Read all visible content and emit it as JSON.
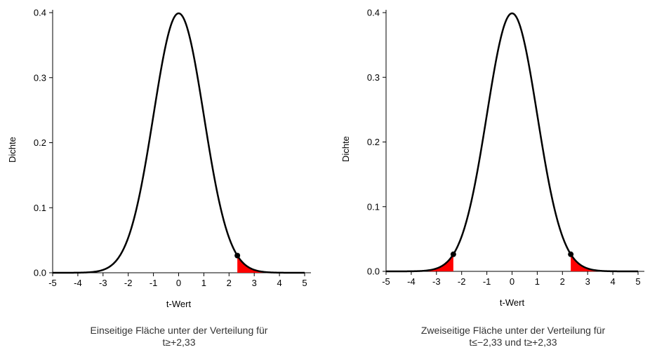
{
  "chart_data": [
    {
      "type": "line",
      "distribution": "standard normal density",
      "xlabel": "t-Wert",
      "ylabel": "Dichte",
      "xlim": [
        -5,
        5
      ],
      "ylim": [
        0,
        0.4
      ],
      "x_ticks": [
        "-5",
        "-4",
        "-3",
        "-2",
        "-1",
        "0",
        "1",
        "2",
        "3",
        "4",
        "5"
      ],
      "y_ticks": [
        "0.0",
        "0.1",
        "0.2",
        "0.3",
        "0.4"
      ],
      "shaded_regions": [
        {
          "from": 2.33,
          "to": 5,
          "color": "#ff0000"
        }
      ],
      "marked_points": [
        {
          "x": 2.33,
          "y": 0.0264
        }
      ],
      "caption": [
        "Einseitige Fläche unter der Verteilung für",
        "t≥+2,33"
      ]
    },
    {
      "type": "line",
      "distribution": "standard normal density",
      "xlabel": "t-Wert",
      "ylabel": "Dichte",
      "xlim": [
        -5,
        5
      ],
      "ylim": [
        0,
        0.4
      ],
      "x_ticks": [
        "-5",
        "-4",
        "-3",
        "-2",
        "-1",
        "0",
        "1",
        "2",
        "3",
        "4",
        "5"
      ],
      "y_ticks": [
        "0.0",
        "0.1",
        "0.2",
        "0.3",
        "0.4"
      ],
      "shaded_regions": [
        {
          "from": -5,
          "to": -2.33,
          "color": "#ff0000"
        },
        {
          "from": 2.33,
          "to": 5,
          "color": "#ff0000"
        }
      ],
      "marked_points": [
        {
          "x": -2.33,
          "y": 0.0264
        },
        {
          "x": 2.33,
          "y": 0.0264
        }
      ],
      "caption": [
        "Zweiseitige Fläche unter der Verteilung für",
        "t≤−2,33 und t≥+2,33"
      ]
    }
  ]
}
